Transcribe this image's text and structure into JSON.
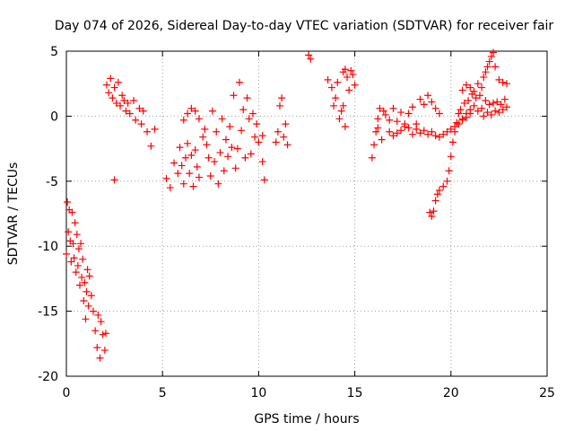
{
  "chart_data": {
    "type": "scatter",
    "title": "Day 074 of 2026, Sidereal Day-to-day VTEC variation (SDTVAR) for receiver fair",
    "xlabel": "GPS time / hours",
    "ylabel": "SDTVAR / TECUs",
    "xlim": [
      0,
      25
    ],
    "ylim": [
      -20,
      5
    ],
    "xticks": [
      0,
      5,
      10,
      15,
      20,
      25
    ],
    "yticks": [
      -20,
      -15,
      -10,
      -5,
      0,
      5
    ],
    "grid": true,
    "marker": "+",
    "series_color": "#ff0000",
    "series": [
      {
        "name": "SDTVAR",
        "points": [
          [
            0.0,
            -10.6
          ],
          [
            0.05,
            -6.6
          ],
          [
            0.1,
            -8.9
          ],
          [
            0.15,
            -7.2
          ],
          [
            0.2,
            -9.6
          ],
          [
            0.25,
            -11.2
          ],
          [
            0.3,
            -7.4
          ],
          [
            0.35,
            -9.8
          ],
          [
            0.4,
            -10.9
          ],
          [
            0.45,
            -8.2
          ],
          [
            0.5,
            -12.0
          ],
          [
            0.55,
            -9.1
          ],
          [
            0.6,
            -11.5
          ],
          [
            0.65,
            -10.2
          ],
          [
            0.7,
            -13.0
          ],
          [
            0.75,
            -9.8
          ],
          [
            0.8,
            -12.4
          ],
          [
            0.85,
            -11.0
          ],
          [
            0.9,
            -14.2
          ],
          [
            0.95,
            -12.8
          ],
          [
            1.0,
            -15.6
          ],
          [
            1.05,
            -13.5
          ],
          [
            1.1,
            -11.8
          ],
          [
            1.15,
            -14.6
          ],
          [
            1.2,
            -12.3
          ],
          [
            1.3,
            -13.8
          ],
          [
            1.4,
            -15.0
          ],
          [
            1.5,
            -16.5
          ],
          [
            1.6,
            -17.8
          ],
          [
            1.65,
            -15.3
          ],
          [
            1.75,
            -18.6
          ],
          [
            1.8,
            -15.8
          ],
          [
            1.9,
            -16.8
          ],
          [
            2.0,
            -18.0
          ],
          [
            2.05,
            -16.7
          ],
          [
            2.1,
            2.4
          ],
          [
            2.2,
            1.8
          ],
          [
            2.3,
            2.9
          ],
          [
            2.4,
            1.4
          ],
          [
            2.5,
            2.2
          ],
          [
            2.6,
            1.0
          ],
          [
            2.7,
            2.6
          ],
          [
            2.8,
            0.8
          ],
          [
            2.9,
            1.6
          ],
          [
            3.0,
            1.2
          ],
          [
            3.1,
            0.4
          ],
          [
            3.2,
            1.0
          ],
          [
            3.3,
            0.2
          ],
          [
            3.5,
            1.2
          ],
          [
            3.6,
            -0.3
          ],
          [
            3.8,
            0.6
          ],
          [
            3.9,
            -0.6
          ],
          [
            4.0,
            0.4
          ],
          [
            4.2,
            -1.2
          ],
          [
            4.4,
            -2.3
          ],
          [
            4.6,
            -1.0
          ],
          [
            2.5,
            -4.9
          ],
          [
            5.2,
            -4.8
          ],
          [
            5.4,
            -5.5
          ],
          [
            5.6,
            -3.6
          ],
          [
            5.8,
            -4.4
          ],
          [
            5.9,
            -2.4
          ],
          [
            6.0,
            -3.8
          ],
          [
            6.1,
            -5.2
          ],
          [
            6.2,
            -3.2
          ],
          [
            6.3,
            -2.1
          ],
          [
            6.4,
            -4.4
          ],
          [
            6.5,
            -3.0
          ],
          [
            6.6,
            -5.4
          ],
          [
            6.8,
            -3.9
          ],
          [
            6.9,
            -4.7
          ],
          [
            6.7,
            -2.6
          ],
          [
            6.1,
            -0.3
          ],
          [
            6.3,
            0.2
          ],
          [
            6.5,
            0.6
          ],
          [
            6.7,
            0.4
          ],
          [
            6.9,
            -0.2
          ],
          [
            7.1,
            -1.6
          ],
          [
            7.2,
            -1.0
          ],
          [
            7.3,
            -2.2
          ],
          [
            7.4,
            -3.2
          ],
          [
            7.5,
            -4.6
          ],
          [
            7.6,
            0.4
          ],
          [
            7.7,
            -3.5
          ],
          [
            7.8,
            -1.2
          ],
          [
            7.9,
            -5.2
          ],
          [
            8.0,
            -2.8
          ],
          [
            8.1,
            -0.2
          ],
          [
            8.2,
            -4.2
          ],
          [
            8.3,
            -1.8
          ],
          [
            8.4,
            -3.1
          ],
          [
            8.5,
            -0.8
          ],
          [
            8.6,
            -2.4
          ],
          [
            8.7,
            1.6
          ],
          [
            8.8,
            -4.0
          ],
          [
            8.9,
            -2.5
          ],
          [
            9.0,
            2.6
          ],
          [
            9.1,
            -1.1
          ],
          [
            9.2,
            0.5
          ],
          [
            9.3,
            -3.2
          ],
          [
            9.4,
            1.4
          ],
          [
            9.5,
            -0.2
          ],
          [
            9.6,
            -2.9
          ],
          [
            9.7,
            0.2
          ],
          [
            9.8,
            -1.6
          ],
          [
            9.9,
            -0.6
          ],
          [
            10.0,
            -2.0
          ],
          [
            10.2,
            -1.5
          ],
          [
            10.3,
            -4.9
          ],
          [
            10.2,
            -3.5
          ],
          [
            10.9,
            -2.0
          ],
          [
            11.0,
            -1.2
          ],
          [
            11.1,
            0.8
          ],
          [
            11.2,
            1.4
          ],
          [
            11.3,
            -1.6
          ],
          [
            11.4,
            -0.6
          ],
          [
            11.5,
            -2.2
          ],
          [
            12.6,
            4.7
          ],
          [
            12.7,
            4.4
          ],
          [
            13.6,
            2.8
          ],
          [
            13.8,
            2.2
          ],
          [
            13.9,
            0.8
          ],
          [
            14.0,
            1.4
          ],
          [
            14.1,
            2.6
          ],
          [
            14.2,
            -0.2
          ],
          [
            14.3,
            0.4
          ],
          [
            14.4,
            3.4
          ],
          [
            14.5,
            3.6
          ],
          [
            14.6,
            3.0
          ],
          [
            14.7,
            2.0
          ],
          [
            14.8,
            3.5
          ],
          [
            14.9,
            3.2
          ],
          [
            15.0,
            2.4
          ],
          [
            14.4,
            0.8
          ],
          [
            14.5,
            -0.8
          ],
          [
            15.9,
            -3.2
          ],
          [
            16.0,
            -2.2
          ],
          [
            16.1,
            -1.2
          ],
          [
            16.2,
            -0.2
          ],
          [
            16.3,
            0.6
          ],
          [
            16.4,
            -1.8
          ],
          [
            16.5,
            0.4
          ],
          [
            16.2,
            -0.9
          ],
          [
            16.6,
            0.1
          ],
          [
            16.8,
            -0.3
          ],
          [
            17.0,
            0.6
          ],
          [
            17.2,
            -0.4
          ],
          [
            17.4,
            0.3
          ],
          [
            17.6,
            -0.6
          ],
          [
            17.8,
            0.2
          ],
          [
            18.0,
            0.7
          ],
          [
            18.2,
            -0.6
          ],
          [
            18.4,
            1.3
          ],
          [
            18.6,
            0.9
          ],
          [
            18.8,
            1.6
          ],
          [
            19.0,
            1.1
          ],
          [
            19.2,
            0.6
          ],
          [
            19.4,
            0.2
          ],
          [
            16.8,
            -1.2
          ],
          [
            17.0,
            -1.5
          ],
          [
            17.2,
            -1.3
          ],
          [
            17.4,
            -1.1
          ],
          [
            17.6,
            -0.8
          ],
          [
            17.8,
            -0.9
          ],
          [
            18.0,
            -1.4
          ],
          [
            18.2,
            -1.0
          ],
          [
            18.4,
            -1.3
          ],
          [
            18.6,
            -1.1
          ],
          [
            18.8,
            -1.4
          ],
          [
            19.0,
            -1.2
          ],
          [
            19.2,
            -1.5
          ],
          [
            19.4,
            -1.6
          ],
          [
            19.6,
            -1.4
          ],
          [
            19.8,
            -1.2
          ],
          [
            20.0,
            -1.0
          ],
          [
            20.2,
            -0.8
          ],
          [
            20.4,
            -0.6
          ],
          [
            20.6,
            -0.3
          ],
          [
            20.8,
            -0.1
          ],
          [
            21.0,
            0.2
          ],
          [
            18.9,
            -7.4
          ],
          [
            19.0,
            -7.7
          ],
          [
            19.1,
            -7.3
          ],
          [
            19.2,
            -6.5
          ],
          [
            19.3,
            -6.0
          ],
          [
            19.4,
            -5.7
          ],
          [
            19.6,
            -5.4
          ],
          [
            19.8,
            -5.0
          ],
          [
            19.9,
            -4.2
          ],
          [
            20.0,
            -3.1
          ],
          [
            20.1,
            -2.0
          ],
          [
            20.2,
            -1.2
          ],
          [
            20.3,
            -0.5
          ],
          [
            20.4,
            0.2
          ],
          [
            20.5,
            0.5
          ],
          [
            20.6,
            -0.2
          ],
          [
            20.7,
            1.0
          ],
          [
            20.8,
            0.2
          ],
          [
            20.9,
            1.2
          ],
          [
            21.0,
            0.5
          ],
          [
            21.1,
            1.7
          ],
          [
            21.2,
            0.8
          ],
          [
            21.3,
            1.4
          ],
          [
            21.4,
            0.4
          ],
          [
            21.5,
            1.6
          ],
          [
            21.6,
            0.6
          ],
          [
            21.7,
            0.0
          ],
          [
            21.8,
            1.2
          ],
          [
            21.9,
            0.3
          ],
          [
            22.0,
            0.9
          ],
          [
            22.1,
            0.1
          ],
          [
            22.2,
            1.0
          ],
          [
            22.3,
            0.4
          ],
          [
            22.4,
            1.1
          ],
          [
            22.5,
            0.3
          ],
          [
            22.6,
            0.9
          ],
          [
            22.7,
            0.5
          ],
          [
            22.8,
            1.3
          ],
          [
            22.9,
            0.7
          ],
          [
            20.6,
            2.0
          ],
          [
            20.8,
            2.4
          ],
          [
            21.0,
            2.2
          ],
          [
            21.2,
            1.9
          ],
          [
            21.4,
            2.5
          ],
          [
            21.6,
            2.2
          ],
          [
            21.7,
            3.0
          ],
          [
            21.8,
            3.4
          ],
          [
            21.9,
            3.8
          ],
          [
            22.0,
            4.2
          ],
          [
            22.1,
            4.6
          ],
          [
            22.2,
            4.9
          ],
          [
            22.3,
            3.8
          ],
          [
            22.5,
            2.8
          ],
          [
            22.7,
            2.6
          ],
          [
            22.9,
            2.5
          ]
        ]
      }
    ]
  }
}
